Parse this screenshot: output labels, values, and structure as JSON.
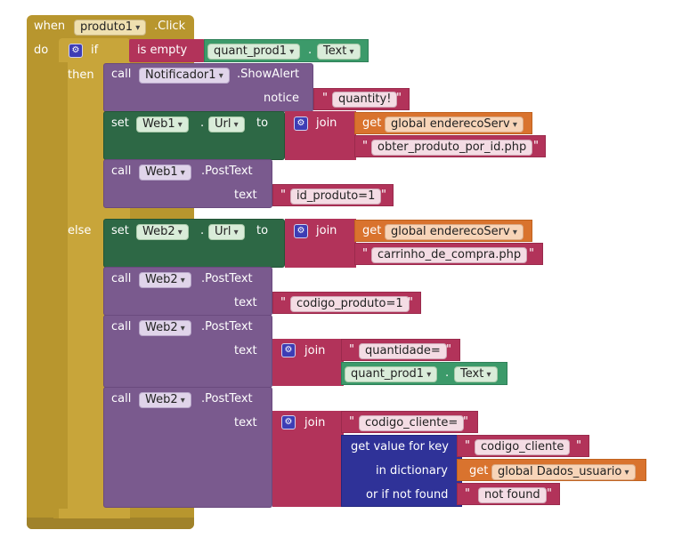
{
  "event": {
    "when": "when",
    "component": "produto1",
    "event": ".Click",
    "do": "do"
  },
  "if_block": {
    "gear": "⚙",
    "if": "if",
    "is_empty": "is empty",
    "then": "then",
    "else": "else"
  },
  "cond": {
    "component": "quant_prod1",
    "dot": ".",
    "property": "Text"
  },
  "alert": {
    "call": "call",
    "component": "Notificador1",
    "method": ".ShowAlert",
    "notice_label": "notice",
    "notice_value": "quantity!"
  },
  "set1": {
    "set": "set",
    "component": "Web1",
    "dot": ".",
    "property": "Url",
    "to": "to",
    "join": "join",
    "get": "get",
    "var": "global enderecoServ",
    "string": "obter_produto_por_id.php"
  },
  "post1": {
    "call": "call",
    "component": "Web1",
    "method": ".PostText",
    "text_label": "text",
    "value": "id_produto=1"
  },
  "set2": {
    "set": "set",
    "component": "Web2",
    "dot": ".",
    "property": "Url",
    "to": "to",
    "join": "join",
    "get": "get",
    "var": "global enderecoServ",
    "string": "carrinho_de_compra.php"
  },
  "post2": {
    "call": "call",
    "component": "Web2",
    "method": ".PostText",
    "text_label": "text",
    "value": "codigo_produto=1"
  },
  "post3": {
    "call": "call",
    "component": "Web2",
    "method": ".PostText",
    "text_label": "text",
    "join": "join",
    "string": "quantidade=",
    "prop_component": "quant_prod1",
    "dot": ".",
    "prop": "Text"
  },
  "post4": {
    "call": "call",
    "component": "Web2",
    "method": ".PostText",
    "text_label": "text",
    "join": "join",
    "string": "codigo_cliente=",
    "get_value": "get value for key",
    "key": "codigo_cliente",
    "in_dict": "in dictionary",
    "get": "get",
    "dict_var": "global Dados_usuario",
    "if_not_found": "or if not found",
    "not_found_value": "not found"
  },
  "quote": "\""
}
